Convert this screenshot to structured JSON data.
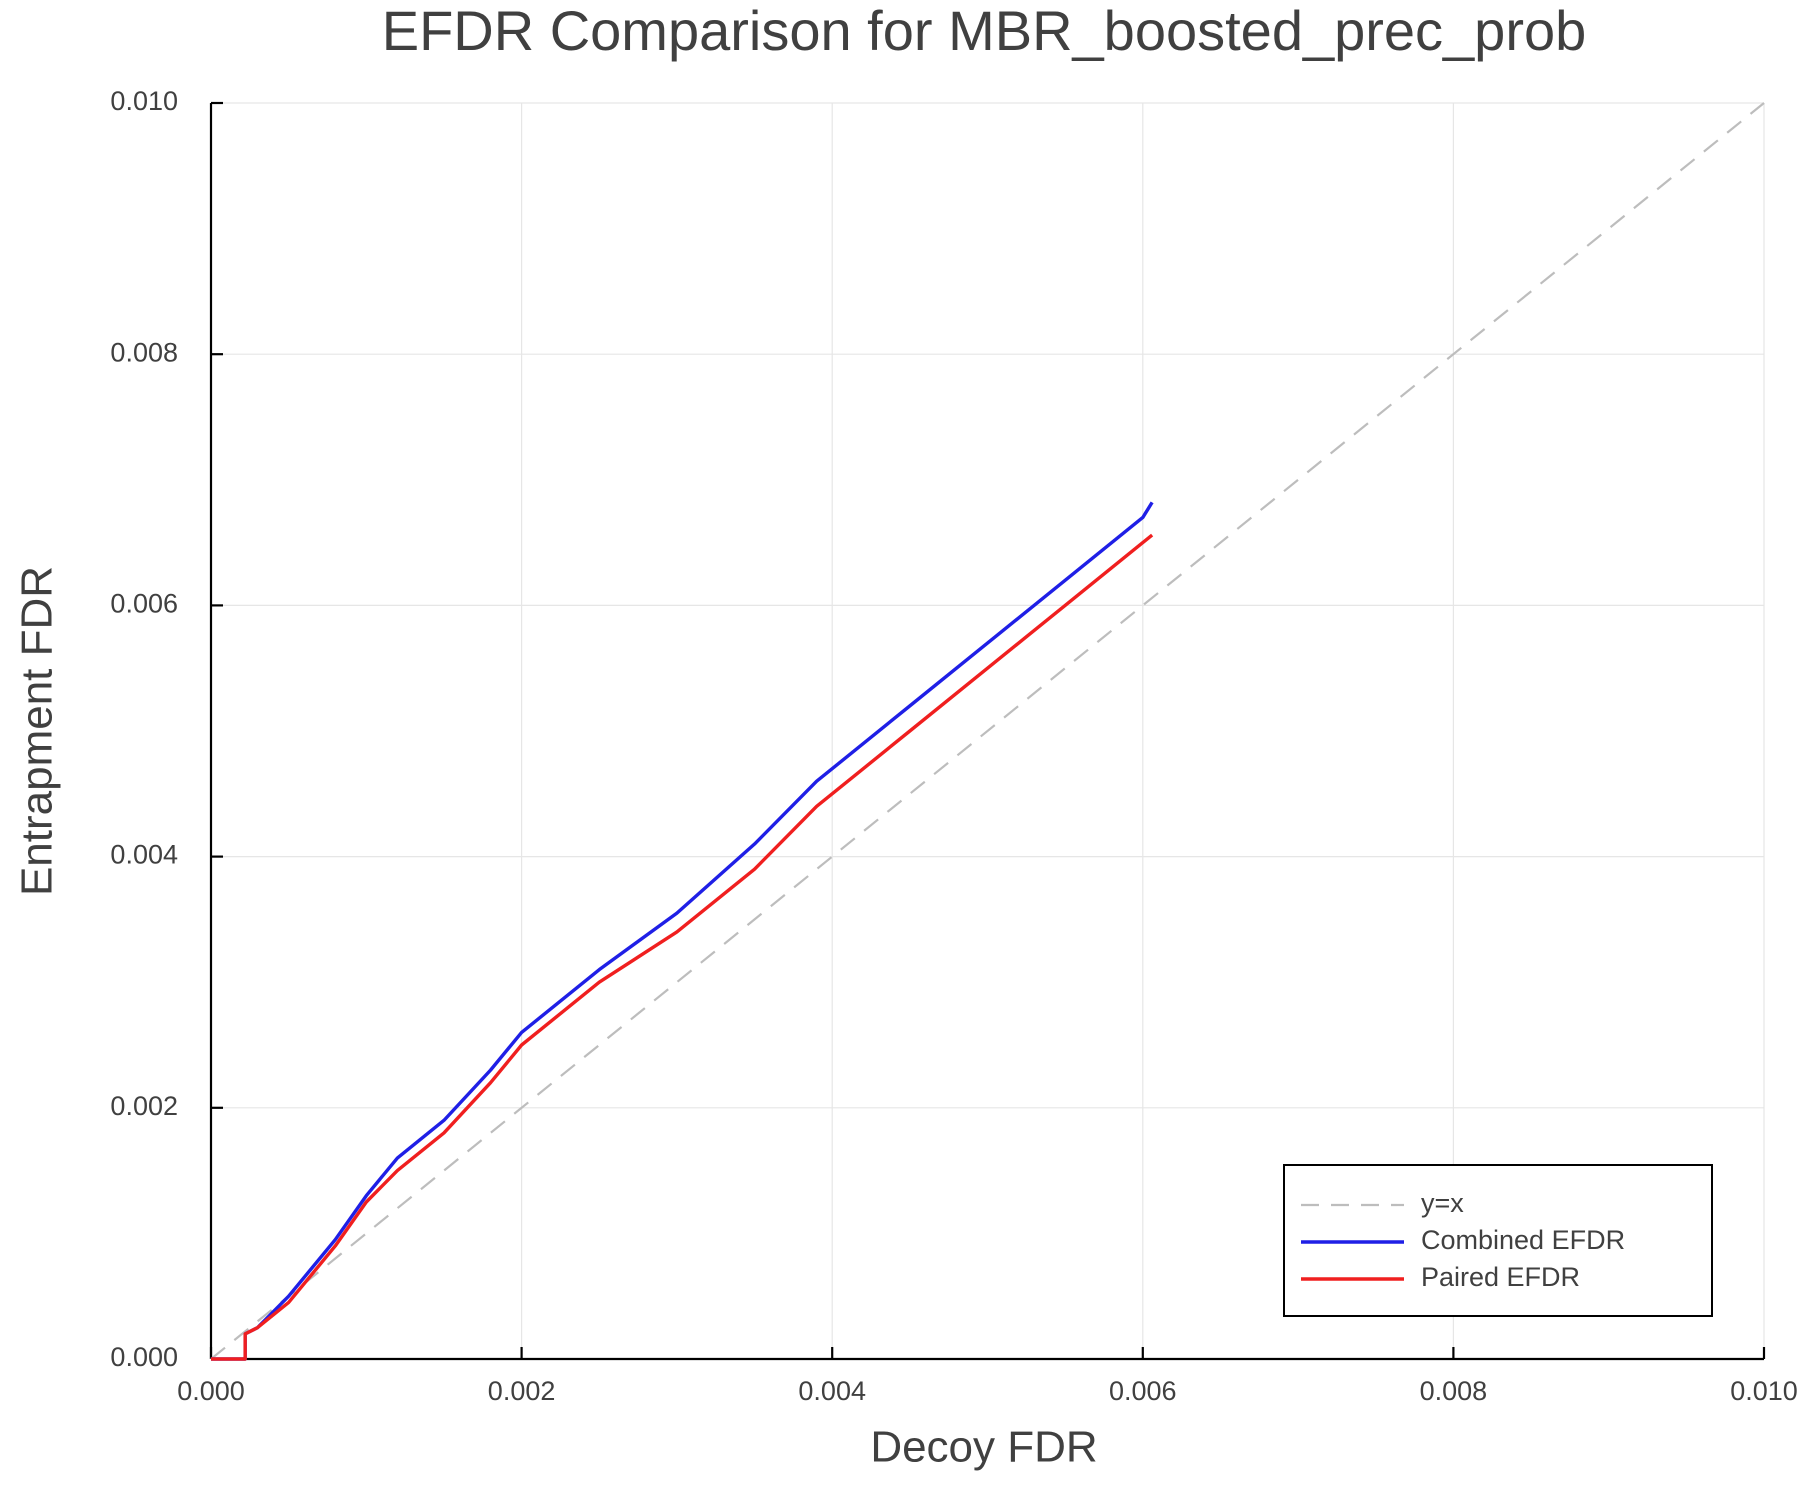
{
  "chart_data": {
    "type": "line",
    "title": "EFDR Comparison for MBR_boosted_prec_prob",
    "x_label": "Decoy FDR",
    "y_label": "Entrapment FDR",
    "xlim": [
      0,
      0.01
    ],
    "ylim": [
      0,
      0.01
    ],
    "xticks": [
      {
        "value": 0,
        "label": "0.000"
      },
      {
        "value": 0.002,
        "label": "0.002"
      },
      {
        "value": 0.004,
        "label": "0.004"
      },
      {
        "value": 0.006,
        "label": "0.006"
      },
      {
        "value": 0.008,
        "label": "0.008"
      },
      {
        "value": 0.01,
        "label": "0.010"
      }
    ],
    "yticks": [
      {
        "value": 0,
        "label": "0.000"
      },
      {
        "value": 0.002,
        "label": "0.002"
      },
      {
        "value": 0.004,
        "label": "0.004"
      },
      {
        "value": 0.006,
        "label": "0.006"
      },
      {
        "value": 0.008,
        "label": "0.008"
      },
      {
        "value": 0.01,
        "label": "0.010"
      }
    ],
    "grid": true,
    "legend": "bottom right",
    "series": [
      {
        "name": "y=x",
        "color": "#bdbdbd",
        "dashed": true,
        "x": [
          0,
          0.01
        ],
        "values": [
          0,
          0.01
        ]
      },
      {
        "name": "Combined EFDR",
        "color": "#1f1fe6",
        "dashed": false,
        "x": [
          0,
          0.00022,
          0.00022,
          0.0003,
          0.0005,
          0.0008,
          0.001,
          0.0012,
          0.0015,
          0.0018,
          0.002,
          0.0025,
          0.003,
          0.0035,
          0.0039,
          0.0042,
          0.0045,
          0.005,
          0.0055,
          0.006,
          0.00606
        ],
        "values": [
          0,
          0,
          0.0002,
          0.00025,
          0.0005,
          0.00095,
          0.0013,
          0.0016,
          0.0019,
          0.0023,
          0.0026,
          0.0031,
          0.00355,
          0.0041,
          0.0046,
          0.0049,
          0.0052,
          0.0057,
          0.0062,
          0.0067,
          0.00682
        ]
      },
      {
        "name": "Paired EFDR",
        "color": "#f01f1f",
        "dashed": false,
        "x": [
          0,
          0.00022,
          0.00022,
          0.0003,
          0.0005,
          0.0008,
          0.001,
          0.0012,
          0.0015,
          0.0018,
          0.002,
          0.0025,
          0.003,
          0.0035,
          0.0039,
          0.0042,
          0.0045,
          0.005,
          0.0055,
          0.006,
          0.00606
        ],
        "values": [
          0,
          0,
          0.0002,
          0.00025,
          0.00045,
          0.0009,
          0.00125,
          0.0015,
          0.0018,
          0.0022,
          0.0025,
          0.003,
          0.0034,
          0.0039,
          0.0044,
          0.0047,
          0.005,
          0.0055,
          0.006,
          0.0065,
          0.00656
        ]
      }
    ]
  }
}
